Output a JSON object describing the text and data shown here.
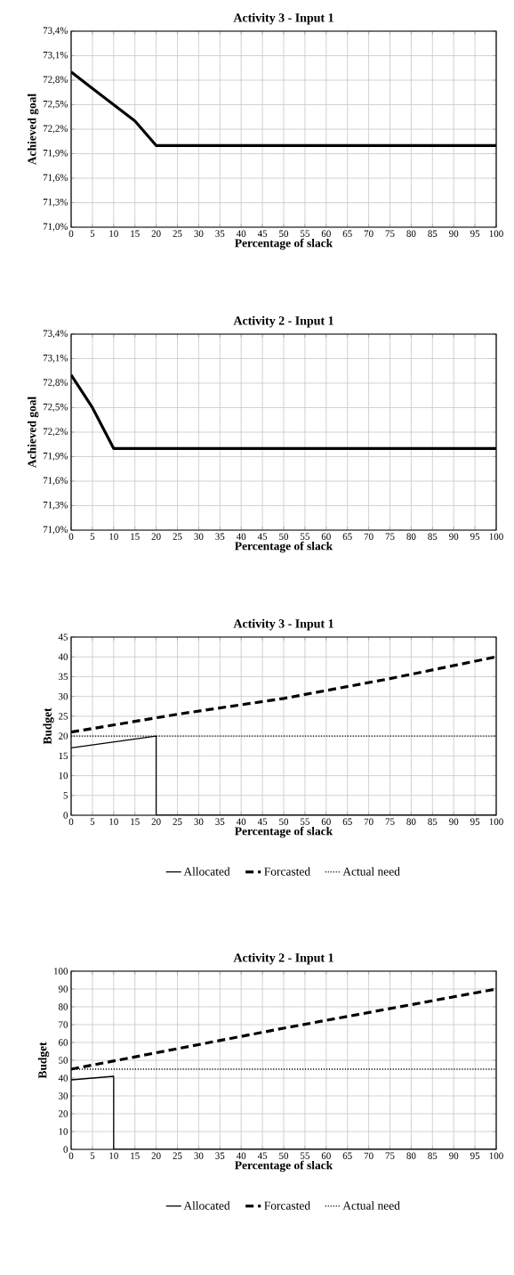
{
  "chart_data": [
    {
      "type": "line",
      "title": "Activity 3 - Input 1",
      "xlabel": "Percentage of slack",
      "ylabel": "Achieved goal",
      "xlim": [
        0,
        100
      ],
      "xticks": [
        0,
        5,
        10,
        15,
        20,
        25,
        30,
        35,
        40,
        45,
        50,
        55,
        60,
        65,
        70,
        75,
        80,
        85,
        90,
        95,
        100
      ],
      "ylim": [
        71.0,
        73.4
      ],
      "yticks": [
        {
          "value": 71.0,
          "label": "71,0%"
        },
        {
          "value": 71.3,
          "label": "71,3%"
        },
        {
          "value": 71.6,
          "label": "71,6%"
        },
        {
          "value": 71.9,
          "label": "71,9%"
        },
        {
          "value": 72.2,
          "label": "72,2%"
        },
        {
          "value": 72.5,
          "label": "72,5%"
        },
        {
          "value": 72.8,
          "label": "72,8%"
        },
        {
          "value": 73.1,
          "label": "73,1%"
        },
        {
          "value": 73.4,
          "label": "73,4%"
        }
      ],
      "grid": true,
      "marker": "none",
      "x": [
        0,
        5,
        10,
        15,
        20,
        25,
        30,
        35,
        40,
        45,
        50,
        55,
        60,
        65,
        70,
        75,
        80,
        85,
        90,
        95,
        100
      ],
      "series": [
        {
          "color": "#000000",
          "line_style": "solid",
          "values": [
            72.9,
            72.7,
            72.5,
            72.3,
            72.0,
            72.0,
            72.0,
            72.0,
            72.0,
            72.0,
            72.0,
            72.0,
            72.0,
            72.0,
            72.0,
            72.0,
            72.0,
            72.0,
            72.0,
            72.0,
            72.0
          ]
        }
      ]
    },
    {
      "type": "line",
      "title": "Activity 2 - Input 1",
      "xlabel": "Percentage of slack",
      "ylabel": "Achieved goal",
      "xlim": [
        0,
        100
      ],
      "xticks": [
        0,
        5,
        10,
        15,
        20,
        25,
        30,
        35,
        40,
        45,
        50,
        55,
        60,
        65,
        70,
        75,
        80,
        85,
        90,
        95,
        100
      ],
      "ylim": [
        71.0,
        73.4
      ],
      "yticks": [
        {
          "value": 71.0,
          "label": "71,0%"
        },
        {
          "value": 71.3,
          "label": "71,3%"
        },
        {
          "value": 71.6,
          "label": "71,6%"
        },
        {
          "value": 71.9,
          "label": "71,9%"
        },
        {
          "value": 72.2,
          "label": "72,2%"
        },
        {
          "value": 72.5,
          "label": "72,5%"
        },
        {
          "value": 72.8,
          "label": "72,8%"
        },
        {
          "value": 73.1,
          "label": "73,1%"
        },
        {
          "value": 73.4,
          "label": "73,4%"
        }
      ],
      "grid": true,
      "marker": "none",
      "x": [
        0,
        5,
        10,
        15,
        20,
        25,
        30,
        35,
        40,
        45,
        50,
        55,
        60,
        65,
        70,
        75,
        80,
        85,
        90,
        95,
        100
      ],
      "series": [
        {
          "color": "#000000",
          "line_style": "solid",
          "values": [
            72.9,
            72.5,
            72.0,
            72.0,
            72.0,
            72.0,
            72.0,
            72.0,
            72.0,
            72.0,
            72.0,
            72.0,
            72.0,
            72.0,
            72.0,
            72.0,
            72.0,
            72.0,
            72.0,
            72.0,
            72.0
          ]
        }
      ]
    },
    {
      "type": "line",
      "title": "Activity 3 - Input 1",
      "xlabel": "Percentage of slack",
      "ylabel": "Budget",
      "xlim": [
        0,
        100
      ],
      "xticks": [
        0,
        5,
        10,
        15,
        20,
        25,
        30,
        35,
        40,
        45,
        50,
        55,
        60,
        65,
        70,
        75,
        80,
        85,
        90,
        95,
        100
      ],
      "ylim": [
        0,
        45
      ],
      "yticks": [
        0,
        5,
        10,
        15,
        20,
        25,
        30,
        35,
        40,
        45
      ],
      "grid": true,
      "marker": "none",
      "legend": "bottom",
      "series": [
        {
          "name": "Allocated",
          "color": "#000000",
          "line_style": "solid",
          "x": [
            0,
            20,
            20,
            100
          ],
          "values": [
            17,
            20,
            0,
            0
          ]
        },
        {
          "name": "Forcasted",
          "color": "#000000",
          "line_style": "dashed",
          "x": [
            0,
            25,
            50,
            75,
            100
          ],
          "values": [
            21,
            25.5,
            29.5,
            34.5,
            40
          ]
        },
        {
          "name": "Actual need",
          "color": "#000000",
          "line_style": "dotted",
          "x": [
            0,
            100
          ],
          "values": [
            20,
            20
          ]
        }
      ]
    },
    {
      "type": "line",
      "title": "Activity 2 - Input 1",
      "xlabel": "Percentage of slack",
      "ylabel": "Budget",
      "xlim": [
        0,
        100
      ],
      "xticks": [
        0,
        5,
        10,
        15,
        20,
        25,
        30,
        35,
        40,
        45,
        50,
        55,
        60,
        65,
        70,
        75,
        80,
        85,
        90,
        95,
        100
      ],
      "ylim": [
        0,
        100
      ],
      "yticks": [
        0,
        10,
        20,
        30,
        40,
        50,
        60,
        70,
        80,
        90,
        100
      ],
      "grid": true,
      "marker": "none",
      "legend": "bottom",
      "series": [
        {
          "name": "Allocated",
          "color": "#000000",
          "line_style": "solid",
          "x": [
            0,
            10,
            10,
            100
          ],
          "values": [
            39,
            41,
            0,
            0
          ]
        },
        {
          "name": "Forcasted",
          "color": "#000000",
          "line_style": "dashed",
          "x": [
            0,
            50,
            100
          ],
          "values": [
            45,
            68,
            90
          ]
        },
        {
          "name": "Actual need",
          "color": "#000000",
          "line_style": "dotted",
          "x": [
            0,
            100
          ],
          "values": [
            45,
            45
          ]
        }
      ]
    }
  ]
}
